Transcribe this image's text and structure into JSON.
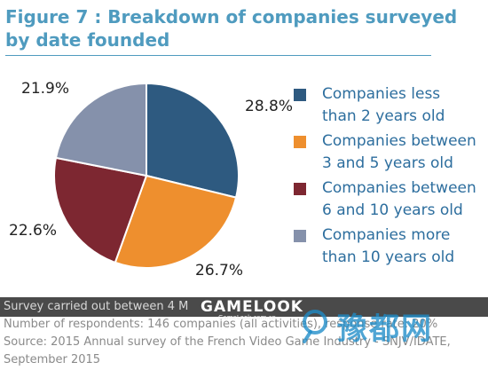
{
  "title": "Figure 7 : Breakdown of companies surveyed by date founded",
  "chart_data": {
    "type": "pie",
    "title": "Figure 7 : Breakdown of companies surveyed by date founded",
    "slices": [
      {
        "label": "Companies less than 2 years old",
        "value": 28.8,
        "display": "28.8%",
        "color": "#2e5a80"
      },
      {
        "label": "Companies between 3 and 5 years old",
        "value": 26.7,
        "display": "26.7%",
        "color": "#ee8f2e"
      },
      {
        "label": "Companies between 6 and 10 years old",
        "value": 22.6,
        "display": "22.6%",
        "color": "#7d2731"
      },
      {
        "label": "Companies more than 10 years old",
        "value": 21.9,
        "display": "21.9%",
        "color": "#8591ab"
      }
    ],
    "start_angle_deg": 0,
    "direction": "clockwise",
    "legend_position": "right"
  },
  "legend": {
    "items": [
      {
        "line1": "Companies less",
        "line2": "than 2 years old"
      },
      {
        "line1": "Companies between",
        "line2": "3 and 5 years old"
      },
      {
        "line1": "Companies between",
        "line2": "6 and 10 years old"
      },
      {
        "line1": "Companies more",
        "line2": "than 10 years old"
      }
    ]
  },
  "footer": {
    "line1": "Survey carried out between 4 M",
    "line2": "Number of respondents: 146 companies (all activities), response rate: 20%",
    "line3": "Source: 2015 Annual survey of the French Video Game Industry - SNJV/IDATE,",
    "line4": "September 2015"
  },
  "watermark": {
    "logo": "GAMELOOK",
    "sub": "GameLook.com.cn",
    "cn": "豫都网",
    "icon": "magnifier-icon"
  }
}
